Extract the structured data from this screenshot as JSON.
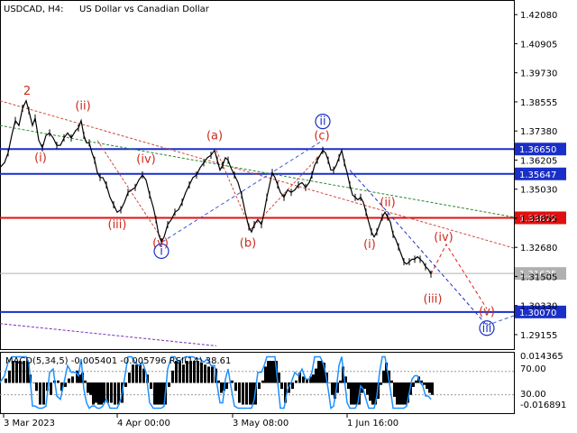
{
  "header": {
    "symbol": "USDCAD, H4:",
    "description": "US Dollar vs Canadian Dollar"
  },
  "chart_data": {
    "type": "line",
    "symbol": "USDCAD",
    "timeframe": "H4",
    "price_axis": {
      "ticks": [
        "1.42080",
        "1.40905",
        "1.39730",
        "1.38555",
        "1.37380",
        "1.36205",
        "1.35030",
        "1.33855",
        "1.32680",
        "1.31505",
        "1.30330",
        "1.29155"
      ],
      "range": [
        1.2857,
        1.4267
      ]
    },
    "time_axis": {
      "labels": [
        "3 Mar 2023",
        "4 Apr 00:00",
        "3 May 08:00",
        "1 Jun 16:00"
      ]
    },
    "levels": [
      {
        "value": 1.3665,
        "label": "1.36650",
        "color": "#1a2fc8"
      },
      {
        "value": 1.35647,
        "label": "1.35647",
        "color": "#1a2fc8"
      },
      {
        "value": 1.33872,
        "label": "1.33872",
        "color": "#e01010"
      },
      {
        "value": 1.3007,
        "label": "1.30070",
        "color": "#1a2fc8"
      },
      {
        "value": 1.31625,
        "label": "1.31625",
        "color": "#b0b0b0"
      }
    ],
    "price_series": [
      [
        0,
        1.359
      ],
      [
        5,
        1.361
      ],
      [
        9,
        1.365
      ],
      [
        13,
        1.372
      ],
      [
        17,
        1.378
      ],
      [
        21,
        1.376
      ],
      [
        25,
        1.383
      ],
      [
        29,
        1.386
      ],
      [
        32,
        1.382
      ],
      [
        36,
        1.376
      ],
      [
        39,
        1.379
      ],
      [
        43,
        1.37
      ],
      [
        47,
        1.367
      ],
      [
        51,
        1.372
      ],
      [
        55,
        1.373
      ],
      [
        59,
        1.371
      ],
      [
        63,
        1.368
      ],
      [
        67,
        1.368
      ],
      [
        71,
        1.371
      ],
      [
        75,
        1.373
      ],
      [
        79,
        1.371
      ],
      [
        84,
        1.374
      ],
      [
        87,
        1.375
      ],
      [
        90,
        1.378
      ],
      [
        93,
        1.372
      ],
      [
        96,
        1.369
      ],
      [
        99,
        1.369
      ],
      [
        102,
        1.365
      ],
      [
        105,
        1.362
      ],
      [
        108,
        1.357
      ],
      [
        111,
        1.355
      ],
      [
        114,
        1.355
      ],
      [
        118,
        1.352
      ],
      [
        122,
        1.347
      ],
      [
        126,
        1.344
      ],
      [
        130,
        1.341
      ],
      [
        134,
        1.342
      ],
      [
        138,
        1.345
      ],
      [
        142,
        1.349
      ],
      [
        146,
        1.35
      ],
      [
        150,
        1.351
      ],
      [
        154,
        1.354
      ],
      [
        158,
        1.356
      ],
      [
        162,
        1.354
      ],
      [
        166,
        1.348
      ],
      [
        170,
        1.343
      ],
      [
        173,
        1.338
      ],
      [
        176,
        1.332
      ],
      [
        179,
        1.329
      ],
      [
        182,
        1.331
      ],
      [
        186,
        1.336
      ],
      [
        190,
        1.338
      ],
      [
        194,
        1.341
      ],
      [
        198,
        1.342
      ],
      [
        202,
        1.345
      ],
      [
        206,
        1.349
      ],
      [
        210,
        1.352
      ],
      [
        214,
        1.355
      ],
      [
        218,
        1.356
      ],
      [
        222,
        1.359
      ],
      [
        226,
        1.361
      ],
      [
        230,
        1.363
      ],
      [
        234,
        1.364
      ],
      [
        238,
        1.366
      ],
      [
        241,
        1.362
      ],
      [
        244,
        1.358
      ],
      [
        247,
        1.36
      ],
      [
        250,
        1.363
      ],
      [
        253,
        1.362
      ],
      [
        256,
        1.359
      ],
      [
        260,
        1.356
      ],
      [
        264,
        1.353
      ],
      [
        268,
        1.348
      ],
      [
        272,
        1.341
      ],
      [
        276,
        1.335
      ],
      [
        279,
        1.333
      ],
      [
        282,
        1.336
      ],
      [
        286,
        1.338
      ],
      [
        290,
        1.336
      ],
      [
        293,
        1.341
      ],
      [
        296,
        1.347
      ],
      [
        299,
        1.352
      ],
      [
        302,
        1.357
      ],
      [
        305,
        1.355
      ],
      [
        308,
        1.352
      ],
      [
        311,
        1.349
      ],
      [
        315,
        1.347
      ],
      [
        319,
        1.35
      ],
      [
        323,
        1.349
      ],
      [
        327,
        1.35
      ],
      [
        331,
        1.352
      ],
      [
        335,
        1.353
      ],
      [
        339,
        1.351
      ],
      [
        343,
        1.353
      ],
      [
        346,
        1.356
      ],
      [
        349,
        1.36
      ],
      [
        352,
        1.362
      ],
      [
        355,
        1.364
      ],
      [
        358,
        1.366
      ],
      [
        361,
        1.365
      ],
      [
        364,
        1.362
      ],
      [
        367,
        1.358
      ],
      [
        370,
        1.358
      ],
      [
        373,
        1.36
      ],
      [
        376,
        1.363
      ],
      [
        379,
        1.366
      ],
      [
        382,
        1.361
      ],
      [
        385,
        1.357
      ],
      [
        388,
        1.352
      ],
      [
        391,
        1.348
      ],
      [
        394,
        1.347
      ],
      [
        397,
        1.346
      ],
      [
        400,
        1.347
      ],
      [
        403,
        1.345
      ],
      [
        406,
        1.341
      ],
      [
        409,
        1.337
      ],
      [
        412,
        1.333
      ],
      [
        415,
        1.331
      ],
      [
        418,
        1.333
      ],
      [
        421,
        1.336
      ],
      [
        424,
        1.339
      ],
      [
        427,
        1.341
      ],
      [
        430,
        1.339
      ],
      [
        433,
        1.337
      ],
      [
        436,
        1.332
      ],
      [
        439,
        1.33
      ],
      [
        442,
        1.327
      ],
      [
        445,
        1.324
      ],
      [
        448,
        1.321
      ],
      [
        451,
        1.32
      ],
      [
        454,
        1.321
      ],
      [
        457,
        1.322
      ],
      [
        460,
        1.322
      ],
      [
        463,
        1.323
      ],
      [
        466,
        1.322
      ],
      [
        469,
        1.321
      ],
      [
        472,
        1.319
      ],
      [
        475,
        1.318
      ],
      [
        478,
        1.316
      ]
    ],
    "wave_labels": [
      {
        "text": "2",
        "x": 30,
        "price": 1.3885,
        "color": "#cc2a1e"
      },
      {
        "text": "(i)",
        "x": 45,
        "price": 1.3615,
        "color": "#cc2a1e"
      },
      {
        "text": "(ii)",
        "x": 92,
        "price": 1.3825,
        "color": "#cc2a1e"
      },
      {
        "text": "(iii)",
        "x": 130,
        "price": 1.3345,
        "color": "#cc2a1e"
      },
      {
        "text": "(iv)",
        "x": 162,
        "price": 1.361,
        "color": "#cc2a1e"
      },
      {
        "text": "(v)",
        "x": 178,
        "price": 1.327,
        "color": "#cc2a1e"
      },
      {
        "text": "(a)",
        "x": 238,
        "price": 1.3705,
        "color": "#cc2a1e"
      },
      {
        "text": "(b)",
        "x": 275,
        "price": 1.327,
        "color": "#cc2a1e"
      },
      {
        "text": "(c)",
        "x": 357,
        "price": 1.3705,
        "color": "#cc2a1e"
      },
      {
        "text": "(i)",
        "x": 410,
        "price": 1.3265,
        "color": "#cc2a1e"
      },
      {
        "text": "(ii)",
        "x": 430,
        "price": 1.3435,
        "color": "#cc2a1e"
      },
      {
        "text": "(iii)",
        "x": 480,
        "price": 1.3045,
        "color": "#cc2a1e"
      },
      {
        "text": "(iv)",
        "x": 492,
        "price": 1.3295,
        "color": "#cc2a1e"
      },
      {
        "text": "(v)",
        "x": 540,
        "price": 1.2993,
        "color": "#cc2a1e"
      },
      {
        "text": "i",
        "x": 179,
        "price": 1.3238,
        "color": "#1a2fc8",
        "circled": true
      },
      {
        "text": "ii",
        "x": 358,
        "price": 1.3762,
        "color": "#1a2fc8",
        "circled": true
      },
      {
        "text": "iii",
        "x": 540,
        "price": 1.2927,
        "color": "#1a2fc8",
        "circled": true
      }
    ],
    "forecast_paths": [
      {
        "color": "#e02020",
        "points": [
          [
            478,
            1.316
          ],
          [
            495,
            1.328
          ],
          [
            540,
            1.302
          ]
        ]
      },
      {
        "color": "#1a2fc8",
        "points": [
          [
            388,
            1.358
          ],
          [
            430,
            1.341
          ],
          [
            540,
            1.2953
          ]
        ]
      }
    ],
    "indicator": {
      "title": "MACD(5,34,5) -0.005401 -0.005796 RSI(14) 38.61",
      "left_ticks": [
        "0.014365",
        "-0.016891"
      ],
      "right_ticks": [
        "70.00",
        "30.00"
      ]
    }
  }
}
